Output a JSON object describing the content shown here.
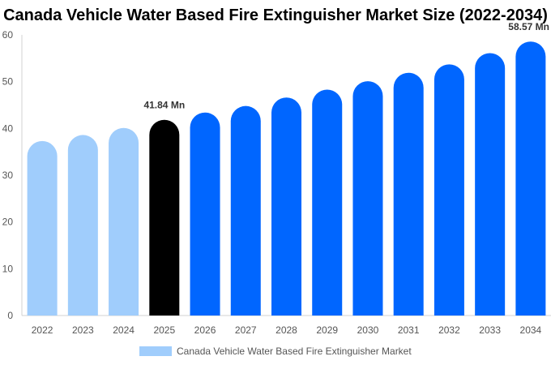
{
  "chart_data": {
    "type": "bar",
    "title": "Canada Vehicle Water Based Fire Extinguisher Market Size (2022-2034)",
    "categories": [
      "2022",
      "2023",
      "2024",
      "2025",
      "2026",
      "2027",
      "2028",
      "2029",
      "2030",
      "2031",
      "2032",
      "2033",
      "2034"
    ],
    "values": [
      37.3,
      38.6,
      40.1,
      41.84,
      43.4,
      44.8,
      46.6,
      48.3,
      50.1,
      51.9,
      53.7,
      56.1,
      58.57
    ],
    "data_labels": [
      {
        "category": "2025",
        "text": "41.84 Mn"
      },
      {
        "category": "2034",
        "text": "58.57 Mn"
      }
    ],
    "ylim": [
      0,
      60
    ],
    "yticks": [
      0,
      10,
      20,
      30,
      40,
      50,
      60
    ],
    "xlabel": "",
    "ylabel": "",
    "legend": {
      "label": "Canada Vehicle Water Based Fire Extinguisher Market",
      "position": "bottom-center"
    },
    "grid": false,
    "colors": {
      "historic": "#a0cdfc",
      "base_year": "#000000",
      "forecast": "#0066ff",
      "legend_swatch": "#a0cdfc"
    }
  }
}
